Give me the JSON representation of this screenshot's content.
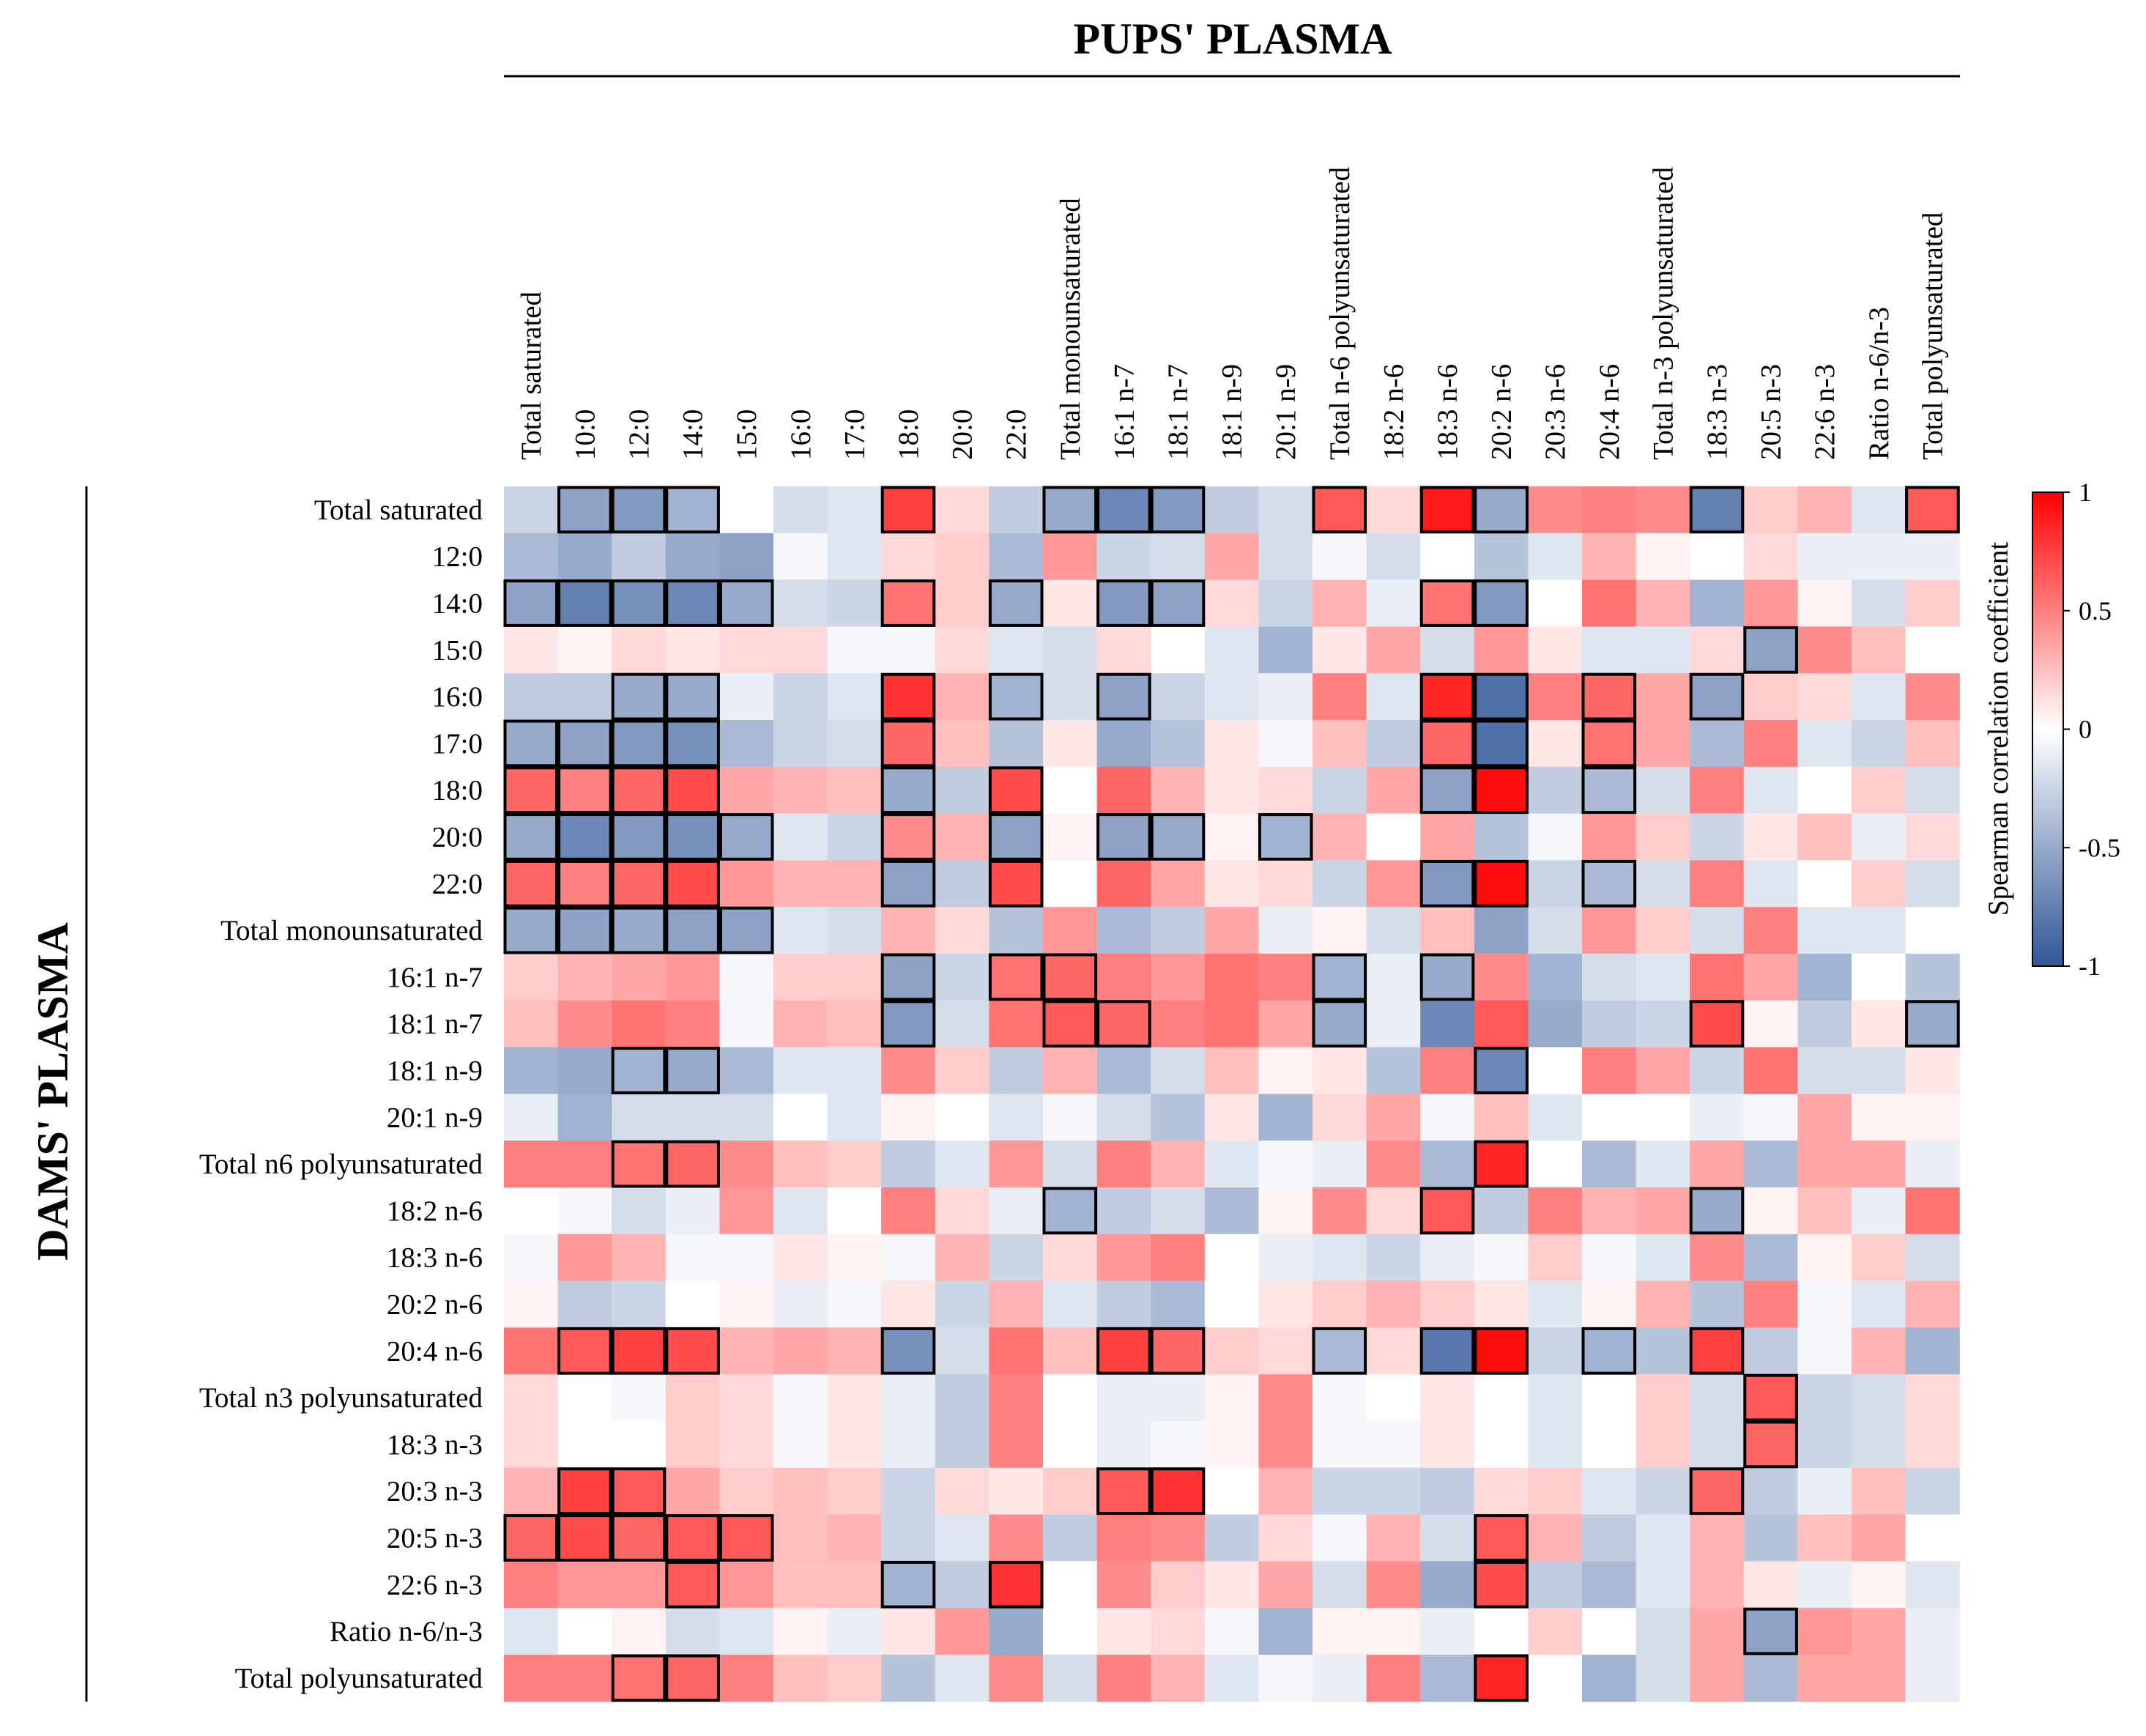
{
  "chart_data": {
    "type": "heatmap",
    "title_x": "PUPS' PLASMA",
    "title_y": "DAMS' PLASMA",
    "columns": [
      "Total saturated",
      "10:0",
      "12:0",
      "14:0",
      "15:0",
      "16:0",
      "17:0",
      "18:0",
      "20:0",
      "22:0",
      "Total monounsaturated",
      "16:1 n-7",
      "18:1 n-7",
      "18:1 n-9",
      "20:1 n-9",
      "Total n-6 polyunsaturated",
      "18:2 n-6",
      "18:3 n-6",
      "20:2 n-6",
      "20:3 n-6",
      "20:4 n-6",
      "Total n-3 polyunsaturated",
      "18:3 n-3",
      "20:5 n-3",
      "22:6 n-3",
      "Ratio n-6/n-3",
      "Total polyunsaturated"
    ],
    "rows": [
      "Total saturated",
      "12:0",
      "14:0",
      "15:0",
      "16:0",
      "17:0",
      "18:0",
      "20:0",
      "22:0",
      "Total monounsaturated",
      "16:1 n-7",
      "18:1 n-7",
      "18:1 n-9",
      "20:1 n-9",
      "Total n6 polyunsaturated",
      "18:2 n-6",
      "18:3 n-6",
      "20:2 n-6",
      "20:4 n-6",
      "Total n3 polyunsaturated",
      "18:3 n-3",
      "20:3 n-3",
      "20:5 n-3",
      "22:6 n-3",
      "Ratio n-6/n-3",
      "Total polyunsaturated"
    ],
    "values": [
      [
        -0.25,
        -0.55,
        -0.6,
        -0.45,
        0,
        -0.2,
        -0.15,
        0.75,
        0.15,
        -0.3,
        -0.5,
        -0.7,
        -0.6,
        -0.3,
        -0.2,
        0.65,
        0.15,
        0.9,
        -0.5,
        0.45,
        0.5,
        0.45,
        -0.75,
        0.2,
        0.3,
        -0.15,
        0.65
      ],
      [
        -0.4,
        -0.5,
        -0.3,
        -0.5,
        -0.55,
        -0.05,
        -0.15,
        0.15,
        0.2,
        -0.4,
        0.4,
        -0.25,
        -0.2,
        0.35,
        -0.2,
        -0.05,
        -0.2,
        0,
        -0.35,
        -0.15,
        0.3,
        0.05,
        0,
        0.15,
        -0.1,
        -0.1,
        -0.1
      ],
      [
        -0.55,
        -0.75,
        -0.65,
        -0.7,
        -0.5,
        -0.2,
        -0.25,
        0.55,
        0.2,
        -0.5,
        0.1,
        -0.6,
        -0.55,
        0.15,
        -0.25,
        0.3,
        -0.1,
        0.55,
        -0.6,
        0,
        0.55,
        0.3,
        -0.45,
        0.4,
        0.05,
        -0.2,
        0.2
      ],
      [
        0.1,
        0.05,
        0.15,
        0.1,
        0.15,
        0.15,
        -0.05,
        -0.05,
        0.15,
        -0.15,
        -0.2,
        0.15,
        0,
        -0.15,
        -0.45,
        0.1,
        0.35,
        -0.2,
        0.4,
        0.1,
        -0.15,
        -0.15,
        0.15,
        -0.55,
        0.45,
        0.25,
        0
      ],
      [
        -0.3,
        -0.3,
        -0.5,
        -0.5,
        -0.1,
        -0.25,
        -0.15,
        0.8,
        0.3,
        -0.45,
        -0.2,
        -0.55,
        -0.25,
        -0.15,
        -0.1,
        0.5,
        -0.15,
        0.85,
        -0.85,
        0.5,
        0.6,
        0.35,
        -0.55,
        0.2,
        0.15,
        -0.15,
        0.45
      ],
      [
        -0.5,
        -0.55,
        -0.6,
        -0.65,
        -0.4,
        -0.25,
        -0.2,
        0.6,
        0.25,
        -0.35,
        0.1,
        -0.5,
        -0.35,
        0.1,
        -0.05,
        0.25,
        -0.3,
        0.6,
        -0.85,
        0.1,
        0.55,
        0.35,
        -0.4,
        0.5,
        -0.15,
        -0.25,
        0.25
      ],
      [
        0.6,
        0.5,
        0.6,
        0.7,
        0.35,
        0.3,
        0.25,
        -0.5,
        -0.3,
        0.7,
        0,
        0.6,
        0.3,
        0.1,
        0.15,
        -0.25,
        0.35,
        -0.55,
        0.95,
        -0.3,
        -0.4,
        -0.2,
        0.5,
        -0.15,
        0,
        0.2,
        -0.2
      ],
      [
        -0.5,
        -0.7,
        -0.6,
        -0.65,
        -0.5,
        -0.15,
        -0.25,
        0.45,
        0.3,
        -0.55,
        0.05,
        -0.55,
        -0.5,
        0.05,
        -0.45,
        0.3,
        0,
        0.35,
        -0.35,
        -0.05,
        0.4,
        0.2,
        -0.25,
        0.1,
        0.25,
        -0.1,
        0.15
      ],
      [
        0.6,
        0.5,
        0.6,
        0.7,
        0.4,
        0.3,
        0.3,
        -0.55,
        -0.3,
        0.7,
        0,
        0.6,
        0.35,
        0.1,
        0.15,
        -0.25,
        0.4,
        -0.6,
        0.95,
        -0.25,
        -0.4,
        -0.2,
        0.5,
        -0.15,
        0,
        0.2,
        -0.2
      ],
      [
        -0.5,
        -0.55,
        -0.5,
        -0.55,
        -0.55,
        -0.15,
        -0.2,
        0.3,
        0.15,
        -0.35,
        0.4,
        -0.4,
        -0.3,
        0.35,
        -0.1,
        0.05,
        -0.2,
        0.25,
        -0.55,
        -0.2,
        0.4,
        0.2,
        -0.2,
        0.5,
        -0.15,
        -0.15,
        0
      ],
      [
        0.2,
        0.3,
        0.35,
        0.4,
        -0.05,
        0.2,
        0.2,
        -0.55,
        -0.25,
        0.55,
        0.6,
        0.5,
        0.4,
        0.55,
        0.5,
        -0.45,
        -0.1,
        -0.5,
        0.45,
        -0.45,
        -0.2,
        -0.15,
        0.55,
        0.35,
        -0.45,
        0,
        -0.35
      ],
      [
        0.25,
        0.45,
        0.55,
        0.5,
        -0.05,
        0.3,
        0.25,
        -0.6,
        -0.2,
        0.55,
        0.65,
        0.6,
        0.5,
        0.55,
        0.35,
        -0.5,
        -0.1,
        -0.7,
        0.65,
        -0.5,
        -0.3,
        -0.25,
        0.7,
        0.05,
        -0.3,
        0.1,
        -0.5
      ],
      [
        -0.45,
        -0.5,
        -0.45,
        -0.5,
        -0.4,
        -0.15,
        -0.15,
        0.45,
        0.2,
        -0.3,
        0.3,
        -0.4,
        -0.2,
        0.25,
        0.05,
        0.1,
        -0.35,
        0.5,
        -0.7,
        0,
        0.5,
        0.35,
        -0.25,
        0.55,
        -0.2,
        -0.2,
        0.1
      ],
      [
        -0.1,
        -0.45,
        -0.2,
        -0.2,
        -0.2,
        0,
        -0.15,
        0.05,
        0,
        -0.15,
        -0.05,
        -0.2,
        -0.35,
        0.1,
        -0.45,
        0.15,
        0.35,
        -0.05,
        0.25,
        -0.15,
        0,
        0,
        -0.1,
        -0.05,
        0.35,
        0.05,
        0.05
      ],
      [
        0.5,
        0.5,
        0.55,
        0.6,
        0.45,
        0.25,
        0.2,
        -0.3,
        -0.15,
        0.4,
        -0.2,
        0.5,
        0.3,
        -0.15,
        -0.05,
        -0.1,
        0.45,
        -0.4,
        0.85,
        0,
        -0.4,
        -0.15,
        0.35,
        -0.4,
        0.35,
        0.35,
        -0.1
      ],
      [
        0,
        -0.05,
        -0.2,
        -0.1,
        0.4,
        -0.15,
        0,
        0.5,
        0.15,
        -0.1,
        -0.45,
        -0.3,
        -0.2,
        -0.4,
        0.05,
        0.45,
        0.15,
        0.65,
        -0.3,
        0.5,
        0.3,
        0.35,
        -0.5,
        0.05,
        0.25,
        -0.1,
        0.55
      ],
      [
        -0.05,
        0.4,
        0.3,
        -0.05,
        -0.05,
        0.1,
        0.05,
        -0.05,
        0.3,
        -0.25,
        0.15,
        0.4,
        0.5,
        0,
        -0.1,
        -0.15,
        -0.25,
        -0.1,
        -0.05,
        0.2,
        -0.05,
        -0.15,
        0.45,
        -0.4,
        0.05,
        0.2,
        -0.2
      ],
      [
        0.05,
        -0.3,
        -0.25,
        0,
        0.05,
        -0.1,
        -0.05,
        0.1,
        -0.25,
        0.3,
        -0.15,
        -0.3,
        -0.4,
        0,
        0.1,
        0.2,
        0.3,
        0.2,
        0.1,
        -0.15,
        0.05,
        0.3,
        -0.35,
        0.5,
        -0.05,
        -0.15,
        0.3
      ],
      [
        0.55,
        0.65,
        0.75,
        0.7,
        0.3,
        0.35,
        0.3,
        -0.65,
        -0.2,
        0.55,
        0.25,
        0.75,
        0.6,
        0.2,
        0.15,
        -0.4,
        0.15,
        -0.8,
        0.95,
        -0.25,
        -0.45,
        -0.35,
        0.75,
        -0.3,
        -0.05,
        0.3,
        -0.45
      ],
      [
        0.15,
        0,
        -0.05,
        0.2,
        0.15,
        -0.05,
        0.1,
        -0.1,
        -0.3,
        0.5,
        0,
        -0.1,
        -0.1,
        0.05,
        0.45,
        -0.05,
        0,
        0.1,
        0,
        -0.15,
        0,
        0.2,
        -0.2,
        0.65,
        -0.25,
        -0.2,
        0.15
      ],
      [
        0.15,
        0,
        0,
        0.2,
        0.15,
        -0.05,
        0.1,
        -0.1,
        -0.3,
        0.5,
        0,
        -0.1,
        -0.05,
        0.05,
        0.45,
        -0.05,
        -0.05,
        0.1,
        0,
        -0.15,
        0,
        0.2,
        -0.2,
        0.6,
        -0.25,
        -0.2,
        0.15
      ],
      [
        0.3,
        0.75,
        0.65,
        0.35,
        0.2,
        0.25,
        0.2,
        -0.25,
        0.15,
        0.1,
        0.2,
        0.65,
        0.8,
        0,
        0.3,
        -0.25,
        -0.25,
        -0.3,
        0.15,
        0.2,
        -0.15,
        -0.25,
        0.6,
        -0.3,
        -0.1,
        0.25,
        -0.25
      ],
      [
        0.6,
        0.7,
        0.6,
        0.65,
        0.65,
        0.25,
        0.3,
        -0.25,
        -0.15,
        0.45,
        -0.3,
        0.5,
        0.45,
        -0.3,
        0.15,
        -0.05,
        0.3,
        -0.2,
        0.65,
        0.3,
        -0.3,
        -0.15,
        0.3,
        -0.35,
        0.25,
        0.35,
        0
      ],
      [
        0.5,
        0.4,
        0.4,
        0.65,
        0.4,
        0.25,
        0.25,
        -0.45,
        -0.3,
        0.8,
        0,
        0.45,
        0.2,
        0.1,
        0.35,
        -0.2,
        0.45,
        -0.5,
        0.7,
        -0.3,
        -0.4,
        -0.15,
        0.3,
        0.1,
        -0.1,
        0.05,
        -0.15
      ],
      [
        -0.15,
        0,
        0.05,
        -0.2,
        -0.15,
        0.05,
        -0.1,
        0.1,
        0.4,
        -0.5,
        0,
        0.1,
        0.15,
        -0.05,
        -0.45,
        0.05,
        0.05,
        -0.1,
        0,
        0.2,
        0,
        -0.2,
        0.35,
        -0.55,
        0.4,
        0.35,
        -0.1
      ],
      [
        0.5,
        0.5,
        0.55,
        0.6,
        0.5,
        0.25,
        0.2,
        -0.35,
        -0.15,
        0.45,
        -0.2,
        0.5,
        0.3,
        -0.15,
        -0.05,
        -0.1,
        0.5,
        -0.4,
        0.85,
        0,
        -0.45,
        -0.2,
        0.35,
        -0.4,
        0.35,
        0.35,
        -0.1
      ]
    ],
    "significant": [
      [
        0,
        1
      ],
      [
        0,
        2
      ],
      [
        0,
        3
      ],
      [
        0,
        7
      ],
      [
        0,
        10
      ],
      [
        0,
        11
      ],
      [
        0,
        12
      ],
      [
        0,
        15
      ],
      [
        0,
        17
      ],
      [
        0,
        18
      ],
      [
        0,
        22
      ],
      [
        0,
        26
      ],
      [
        2,
        0
      ],
      [
        2,
        1
      ],
      [
        2,
        2
      ],
      [
        2,
        3
      ],
      [
        2,
        4
      ],
      [
        2,
        7
      ],
      [
        2,
        9
      ],
      [
        2,
        11
      ],
      [
        2,
        12
      ],
      [
        2,
        17
      ],
      [
        2,
        18
      ],
      [
        3,
        23
      ],
      [
        4,
        2
      ],
      [
        4,
        3
      ],
      [
        4,
        7
      ],
      [
        4,
        9
      ],
      [
        4,
        11
      ],
      [
        4,
        17
      ],
      [
        4,
        18
      ],
      [
        4,
        20
      ],
      [
        4,
        22
      ],
      [
        5,
        0
      ],
      [
        5,
        1
      ],
      [
        5,
        2
      ],
      [
        5,
        3
      ],
      [
        5,
        7
      ],
      [
        5,
        17
      ],
      [
        5,
        18
      ],
      [
        5,
        20
      ],
      [
        6,
        0
      ],
      [
        6,
        1
      ],
      [
        6,
        2
      ],
      [
        6,
        3
      ],
      [
        6,
        7
      ],
      [
        6,
        9
      ],
      [
        6,
        17
      ],
      [
        6,
        18
      ],
      [
        6,
        20
      ],
      [
        7,
        0
      ],
      [
        7,
        1
      ],
      [
        7,
        2
      ],
      [
        7,
        3
      ],
      [
        7,
        4
      ],
      [
        7,
        7
      ],
      [
        7,
        9
      ],
      [
        7,
        11
      ],
      [
        7,
        12
      ],
      [
        7,
        14
      ],
      [
        8,
        0
      ],
      [
        8,
        1
      ],
      [
        8,
        2
      ],
      [
        8,
        3
      ],
      [
        8,
        7
      ],
      [
        8,
        9
      ],
      [
        8,
        17
      ],
      [
        8,
        18
      ],
      [
        8,
        20
      ],
      [
        9,
        0
      ],
      [
        9,
        1
      ],
      [
        9,
        2
      ],
      [
        9,
        3
      ],
      [
        9,
        4
      ],
      [
        10,
        7
      ],
      [
        10,
        9
      ],
      [
        10,
        10
      ],
      [
        10,
        15
      ],
      [
        10,
        17
      ],
      [
        11,
        7
      ],
      [
        11,
        10
      ],
      [
        11,
        11
      ],
      [
        11,
        15
      ],
      [
        11,
        22
      ],
      [
        11,
        26
      ],
      [
        12,
        2
      ],
      [
        12,
        3
      ],
      [
        12,
        18
      ],
      [
        14,
        2
      ],
      [
        14,
        3
      ],
      [
        14,
        18
      ],
      [
        15,
        10
      ],
      [
        15,
        17
      ],
      [
        15,
        22
      ],
      [
        18,
        1
      ],
      [
        18,
        2
      ],
      [
        18,
        3
      ],
      [
        18,
        7
      ],
      [
        18,
        11
      ],
      [
        18,
        12
      ],
      [
        18,
        15
      ],
      [
        18,
        17
      ],
      [
        18,
        18
      ],
      [
        18,
        20
      ],
      [
        18,
        22
      ],
      [
        19,
        23
      ],
      [
        20,
        23
      ],
      [
        21,
        1
      ],
      [
        21,
        2
      ],
      [
        21,
        11
      ],
      [
        21,
        12
      ],
      [
        21,
        22
      ],
      [
        22,
        0
      ],
      [
        22,
        1
      ],
      [
        22,
        2
      ],
      [
        22,
        3
      ],
      [
        22,
        4
      ],
      [
        22,
        18
      ],
      [
        23,
        3
      ],
      [
        23,
        7
      ],
      [
        23,
        9
      ],
      [
        23,
        18
      ],
      [
        24,
        23
      ],
      [
        25,
        2
      ],
      [
        25,
        3
      ],
      [
        25,
        18
      ]
    ],
    "colorbar": {
      "label": "Spearman correlation coefficient",
      "min": -1,
      "max": 1,
      "ticks": [
        "1",
        "0.5",
        "0",
        "-0.5",
        "-1"
      ],
      "low_color": "#2f5597",
      "mid_color": "#ffffff",
      "high_color": "#ff0000"
    }
  }
}
